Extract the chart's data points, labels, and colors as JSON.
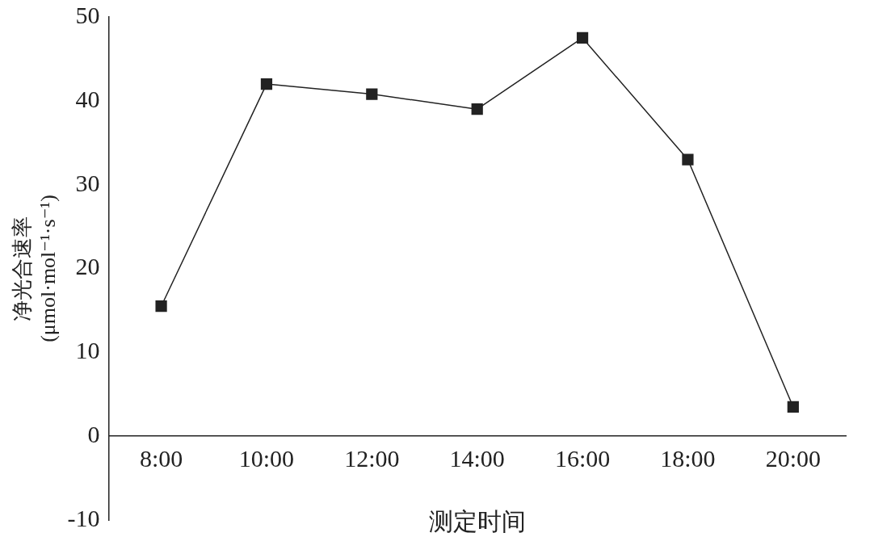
{
  "chart_data": {
    "type": "line",
    "xlabel": "测定时间",
    "ylabel": "净光合速率\n(μmol·mol⁻¹·s⁻¹)",
    "categories": [
      "8:00",
      "10:00",
      "12:00",
      "14:00",
      "16:00",
      "18:00",
      "20:00"
    ],
    "series": [
      {
        "color": "#222222",
        "values": [
          15.5,
          42,
          40.8,
          39,
          47.5,
          33,
          3.5
        ]
      }
    ],
    "ylim": [
      -10,
      50
    ],
    "yticks": [
      -10,
      0,
      10,
      20,
      30,
      40,
      50
    ],
    "grid": false,
    "legend": false,
    "marker": "square",
    "line_style": "solid"
  }
}
